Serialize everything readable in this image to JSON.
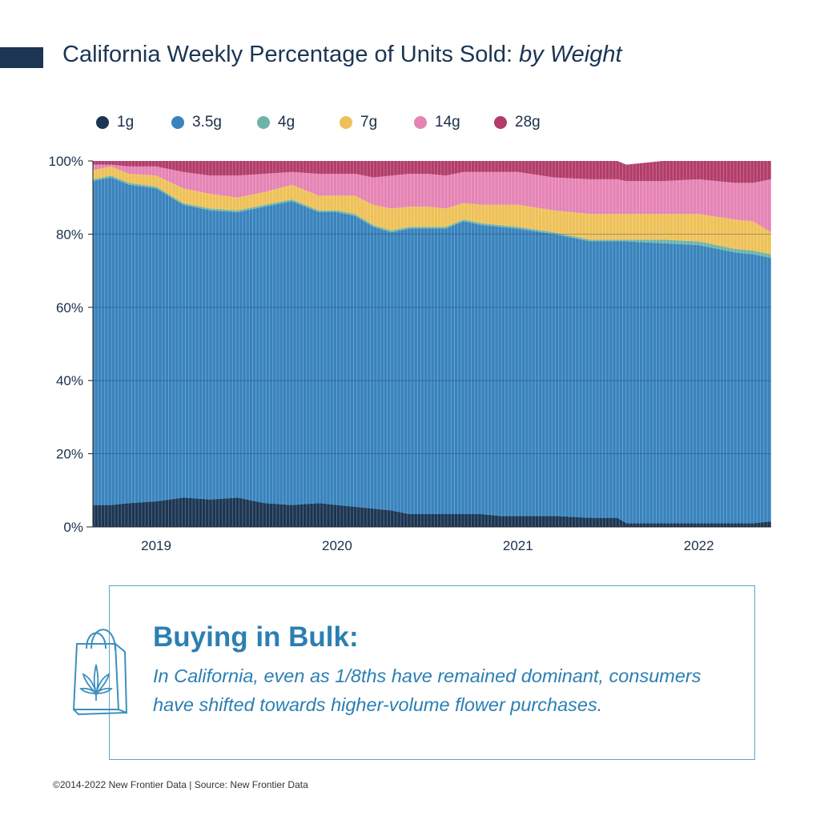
{
  "header": {
    "title": "California Weekly Percentage of Units Sold:",
    "title_emphasis": "by Weight"
  },
  "colors": {
    "1g": "#1b3553",
    "3.5g": "#3883bd",
    "4g": "#6fb3a8",
    "7g": "#eec158",
    "14g": "#e583b4",
    "28g": "#b23c69",
    "title_bar": "#1b3553",
    "accent": "#2b7fb2"
  },
  "chart_data": {
    "type": "area",
    "stacked": true,
    "normalized_percent": true,
    "x_unit": "decimal year",
    "x_range": [
      2018.65,
      2022.4
    ],
    "ylim": [
      0,
      100
    ],
    "y_ticks": [
      "0%",
      "20%",
      "40%",
      "60%",
      "80%",
      "100%"
    ],
    "x_tick_labels": [
      "2019",
      "2020",
      "2021",
      "2022"
    ],
    "x_tick_years": [
      2019,
      2020,
      2021,
      2022
    ],
    "grid": true,
    "legend_position": "top",
    "x": [
      2018.65,
      2018.75,
      2018.85,
      2019.0,
      2019.15,
      2019.3,
      2019.45,
      2019.6,
      2019.75,
      2019.9,
      2020.0,
      2020.1,
      2020.2,
      2020.3,
      2020.4,
      2020.5,
      2020.6,
      2020.7,
      2020.8,
      2020.9,
      2021.0,
      2021.2,
      2021.4,
      2021.55,
      2021.6,
      2021.8,
      2022.0,
      2022.2,
      2022.3,
      2022.4
    ],
    "series": [
      {
        "name": "1g",
        "values": [
          6,
          6,
          6.5,
          7,
          8,
          7.5,
          8,
          6.5,
          6,
          6.5,
          6,
          5.5,
          5,
          4.5,
          3.5,
          3.5,
          3.5,
          3.5,
          3.5,
          3,
          3,
          3,
          2.5,
          2.5,
          1,
          1,
          1,
          1,
          1,
          1.5
        ]
      },
      {
        "name": "3.5g",
        "values": [
          88.5,
          89.5,
          87,
          85.5,
          80,
          79,
          78,
          81,
          83,
          79.5,
          80,
          79.5,
          77,
          76,
          78,
          78,
          78,
          80,
          79,
          79,
          78.5,
          77,
          75.5,
          75.5,
          77,
          76.5,
          76,
          74,
          73.5,
          72
        ]
      },
      {
        "name": "4g",
        "values": [
          0.5,
          0.5,
          0.5,
          0.5,
          0.5,
          0.5,
          0.5,
          0.5,
          0.5,
          0.5,
          0.5,
          0.5,
          0.5,
          0.5,
          0.5,
          0.5,
          0.5,
          0.5,
          0.5,
          0.5,
          0.5,
          0.5,
          0.5,
          0.5,
          0.5,
          1,
          1,
          1,
          1,
          1
        ]
      },
      {
        "name": "7g",
        "values": [
          2.5,
          2.5,
          2.5,
          3,
          4,
          4,
          3.5,
          3.5,
          4,
          4,
          4,
          5,
          5.5,
          6,
          5.5,
          5.5,
          5,
          4.5,
          5,
          5.5,
          6,
          6,
          7,
          7,
          7,
          7,
          7.5,
          8,
          8,
          6
        ]
      },
      {
        "name": "14g",
        "values": [
          1.5,
          0.5,
          2,
          2.5,
          4.5,
          5,
          6,
          5,
          3.5,
          6,
          6,
          6,
          7.5,
          9,
          9,
          9,
          9,
          8.5,
          9,
          9,
          9,
          9,
          9.5,
          9.5,
          9,
          9,
          9.5,
          10,
          10.5,
          14.5
        ]
      },
      {
        "name": "28g",
        "values": [
          1,
          1,
          1.5,
          1.5,
          3,
          4,
          4,
          3.5,
          3,
          3.5,
          3.5,
          3.5,
          4.5,
          4,
          3.5,
          3.5,
          4,
          3,
          3,
          3,
          3,
          4.5,
          5,
          5,
          4.5,
          5.5,
          5,
          6,
          6,
          5
        ]
      }
    ]
  },
  "callout": {
    "heading": "Buying in Bulk:",
    "body": "In California, even as 1/8ths have remained dominant, consumers have shifted towards higher-volume flower purchases."
  },
  "icons": [
    "shopping-bag-icon",
    "cannabis-leaf-icon"
  ],
  "footer": {
    "credit": "©2014-2022  New Frontier Data | Source: New Frontier Data"
  }
}
